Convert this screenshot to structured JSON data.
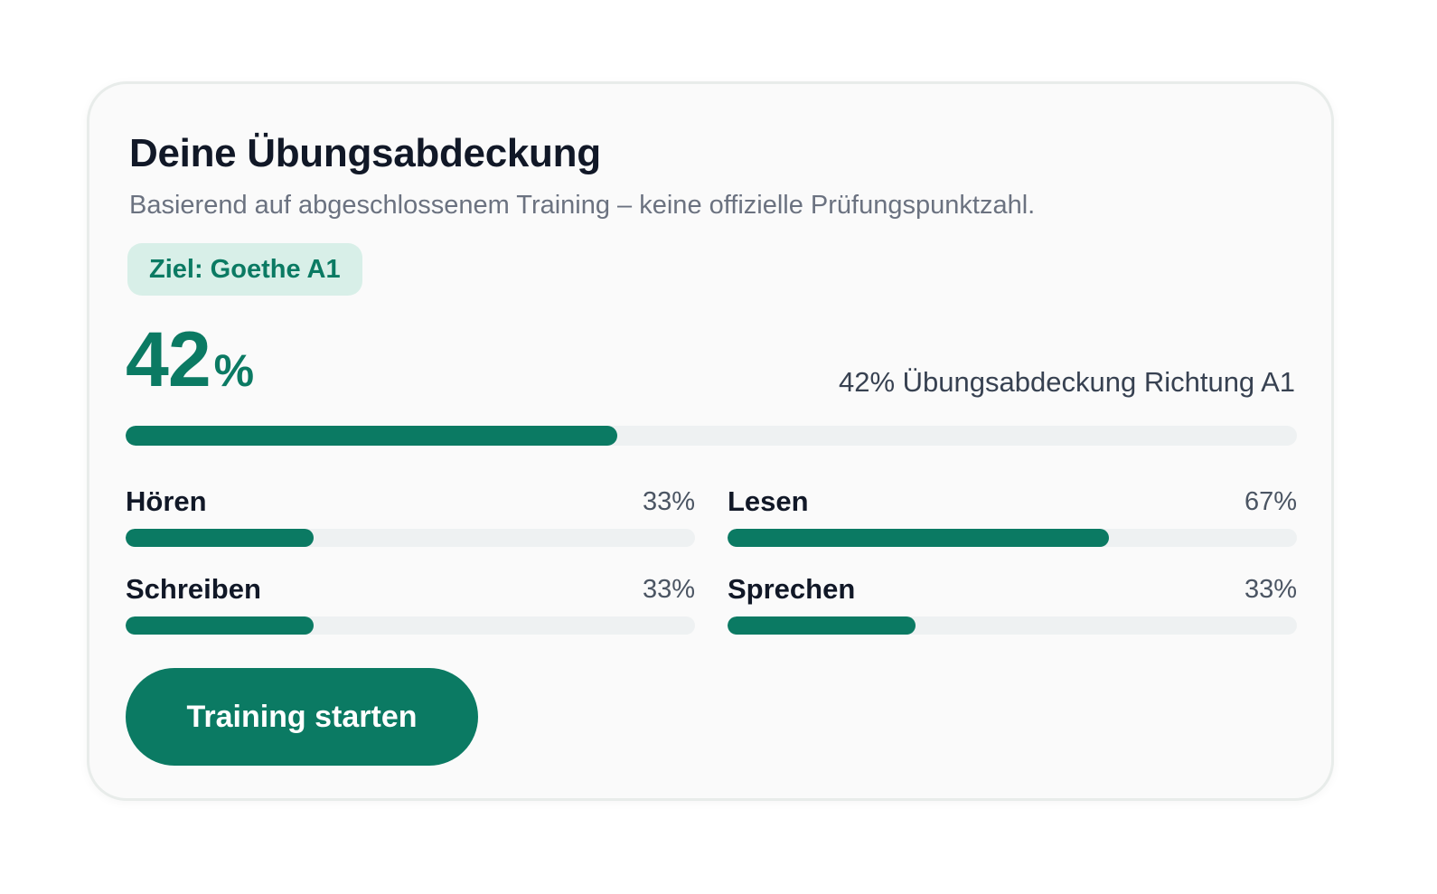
{
  "card": {
    "title": "Deine Übungsabdeckung",
    "subtitle": "Basierend auf abgeschlossenem Training – keine offizielle Prüfungspunktzahl.",
    "goal_badge": "Ziel: Goethe A1"
  },
  "overall": {
    "value": "42",
    "unit": "%",
    "caption": "42% Übungsabdeckung Richtung A1",
    "progress_percent": 42
  },
  "skills": [
    {
      "name": "Hören",
      "value_label": "33%",
      "progress_percent": 33
    },
    {
      "name": "Lesen",
      "value_label": "67%",
      "progress_percent": 67
    },
    {
      "name": "Schreiben",
      "value_label": "33%",
      "progress_percent": 33
    },
    {
      "name": "Sprechen",
      "value_label": "33%",
      "progress_percent": 33
    }
  ],
  "actions": {
    "start_training_label": "Training starten"
  },
  "colors": {
    "accent": "#0b7a63",
    "badge_background": "#d8efe8",
    "track": "#eef1f2",
    "card_background": "#fafafa"
  }
}
